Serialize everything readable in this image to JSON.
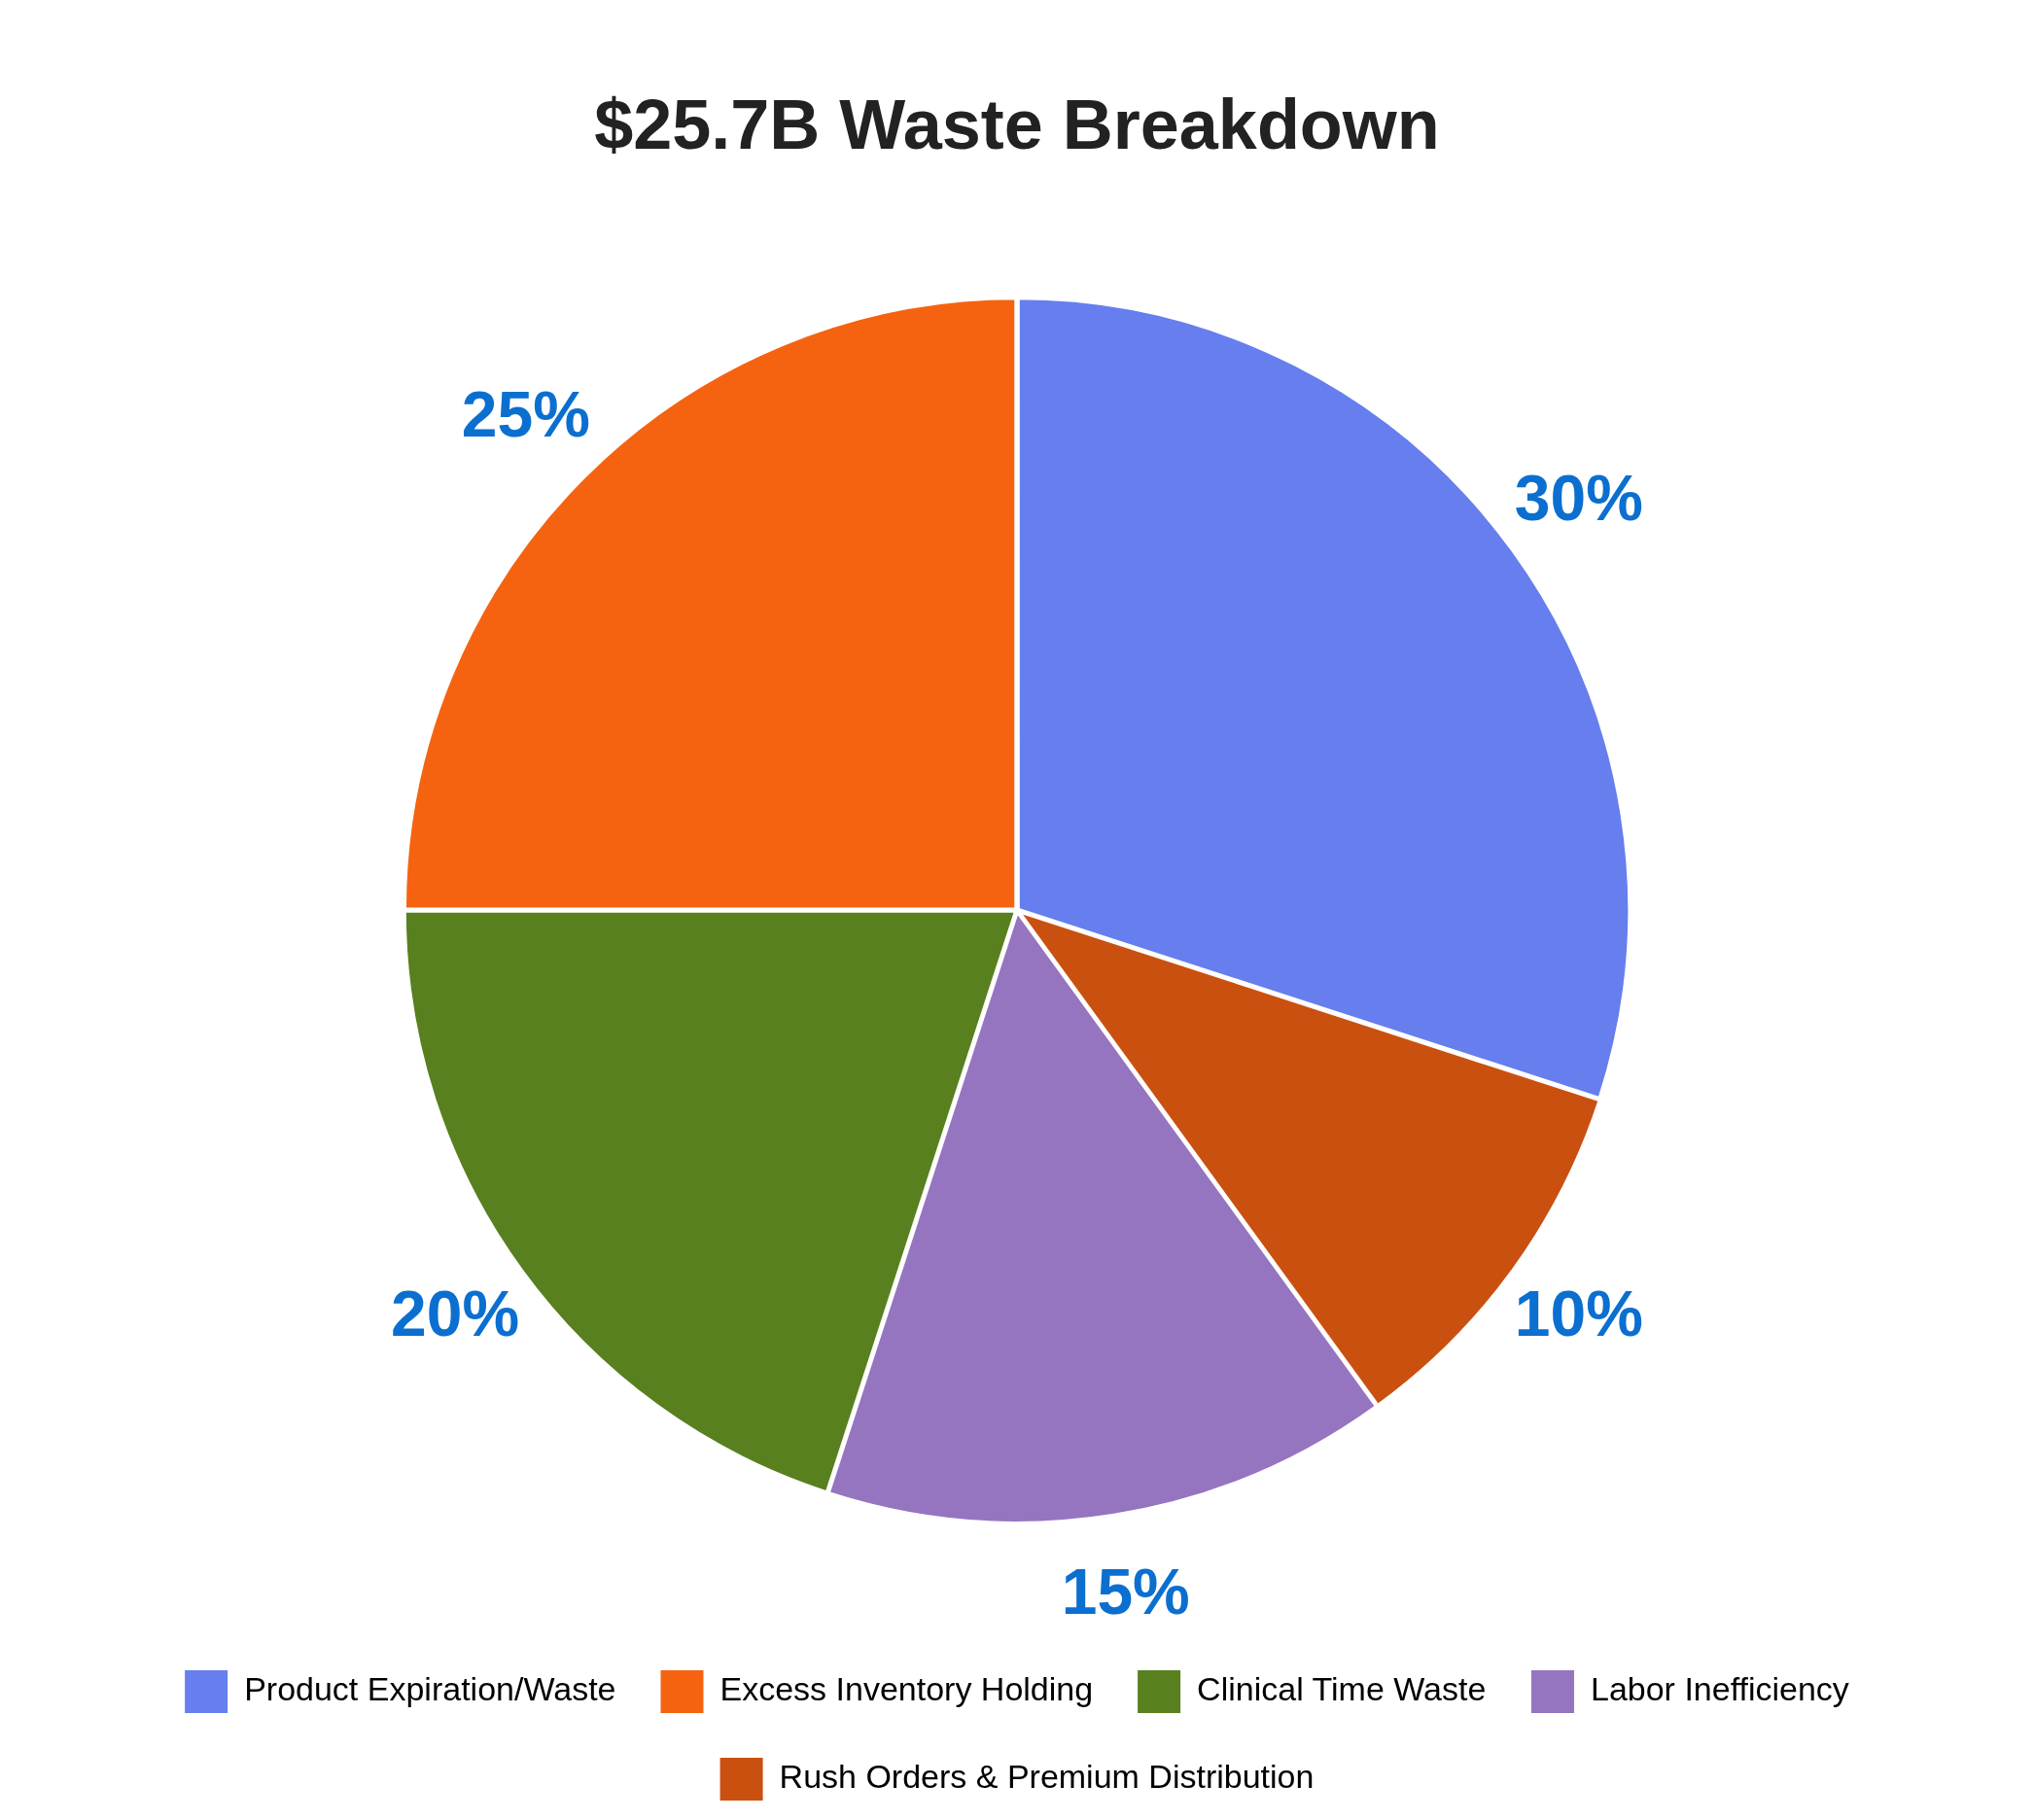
{
  "chart_data": {
    "type": "pie",
    "title": "$25.7B Waste Breakdown",
    "categories": [
      "Product Expiration/Waste",
      "Excess Inventory Holding",
      "Clinical Time Waste",
      "Labor Inefficiency",
      "Rush Orders & Premium Distribution"
    ],
    "values": [
      30,
      25,
      20,
      15,
      10
    ],
    "colors": [
      "#667eee",
      "#f56311",
      "#58801e",
      "#9575bf",
      "#ca5010"
    ],
    "value_labels": [
      "30%",
      "25%",
      "20%",
      "15%",
      "10%"
    ],
    "legend": "bottom"
  }
}
